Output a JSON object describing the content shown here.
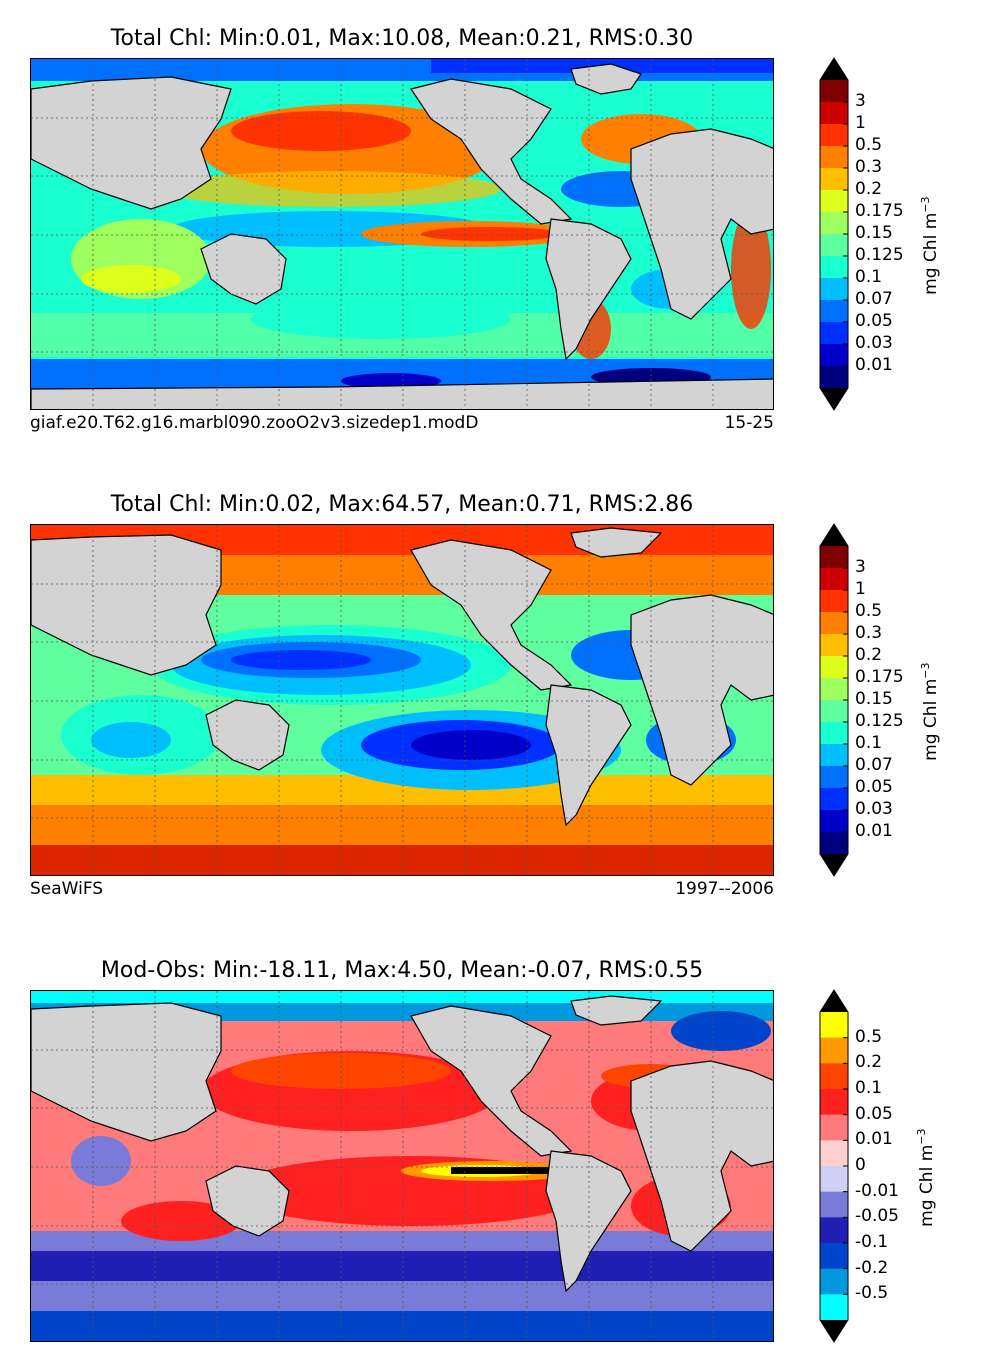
{
  "panels": [
    {
      "title": "Total Chl: Min:0.01, Max:10.08, Mean:0.21, RMS:0.30",
      "caption_left": "giaf.e20.T62.g16.marbl090.zooO2v3.sizedep1.modD",
      "caption_right": "15-25",
      "colorbar": {
        "label": "mg Chl m",
        "label_exponent": "−3",
        "ticks": [
          "3",
          "1",
          "0.5",
          "0.3",
          "0.2",
          "0.175",
          "0.15",
          "0.125",
          "0.1",
          "0.07",
          "0.05",
          "0.03",
          "0.01"
        ],
        "colors": [
          "#7f0000",
          "#cc0000",
          "#ff3300",
          "#ff7f00",
          "#ffbf00",
          "#ddff1a",
          "#9fff5f",
          "#5fff9f",
          "#1affd0",
          "#00bfff",
          "#0070ff",
          "#0030ff",
          "#0000c8",
          "#00007f"
        ],
        "extend_top_color": "#000000",
        "extend_bottom_color": "#000000"
      }
    },
    {
      "title": "Total Chl: Min:0.02, Max:64.57, Mean:0.71, RMS:2.86",
      "caption_left": "SeaWiFS",
      "caption_right": "1997--2006",
      "colorbar": {
        "label": "mg Chl m",
        "label_exponent": "−3",
        "ticks": [
          "3",
          "1",
          "0.5",
          "0.3",
          "0.2",
          "0.175",
          "0.15",
          "0.125",
          "0.1",
          "0.07",
          "0.05",
          "0.03",
          "0.01"
        ],
        "colors": [
          "#7f0000",
          "#cc0000",
          "#ff3300",
          "#ff7f00",
          "#ffbf00",
          "#ddff1a",
          "#9fff5f",
          "#5fff9f",
          "#1affd0",
          "#00bfff",
          "#0070ff",
          "#0030ff",
          "#0000c8",
          "#00007f"
        ],
        "extend_top_color": "#000000",
        "extend_bottom_color": "#000000"
      }
    },
    {
      "title": "Mod-Obs: Min:-18.11, Max:4.50, Mean:-0.07, RMS:0.55",
      "caption_left": "",
      "caption_right": "",
      "colorbar": {
        "label": "mg Chl m",
        "label_exponent": "−3",
        "ticks": [
          "0.5",
          "0.2",
          "0.1",
          "0.05",
          "0.01",
          "0",
          "-0.01",
          "-0.05",
          "-0.1",
          "-0.2",
          "-0.5"
        ],
        "colors": [
          "#ffff00",
          "#ff9900",
          "#ff4400",
          "#ff2020",
          "#ff7a7a",
          "#ffd0d0",
          "#d0d0f4",
          "#7a7ad8",
          "#2020b4",
          "#0044cc",
          "#0099dd",
          "#00ffff"
        ],
        "extend_top_color": "#000000",
        "extend_bottom_color": "#000000"
      }
    }
  ],
  "map_colors": {
    "land": "#d3d3d3",
    "coastline": "#000000",
    "gridline": "#555555"
  }
}
